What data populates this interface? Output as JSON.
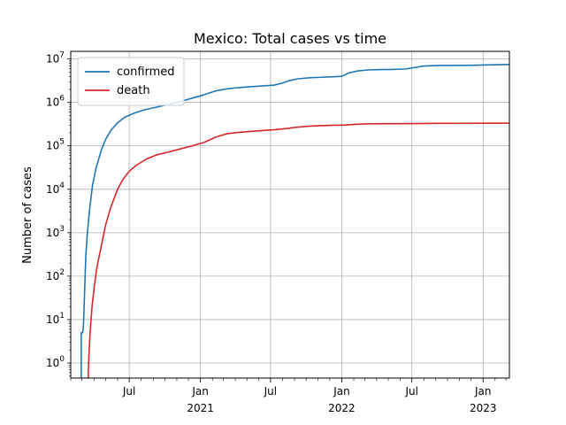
{
  "chart_data": {
    "type": "line",
    "title": "Mexico: Total cases vs time",
    "xlabel": "",
    "ylabel": "Number of cases",
    "yscale": "log",
    "ylim": [
      0.45,
      15000000
    ],
    "xlim": [
      "2020-02-01",
      "2023-03-10"
    ],
    "grid": true,
    "legend": "top-left",
    "x_ticks": [
      {
        "date": "2020-07-01",
        "label": "Jul",
        "sublabel": ""
      },
      {
        "date": "2021-01-01",
        "label": "Jan",
        "sublabel": "2021"
      },
      {
        "date": "2021-07-01",
        "label": "Jul",
        "sublabel": ""
      },
      {
        "date": "2022-01-01",
        "label": "Jan",
        "sublabel": "2022"
      },
      {
        "date": "2022-07-01",
        "label": "Jul",
        "sublabel": ""
      },
      {
        "date": "2023-01-01",
        "label": "Jan",
        "sublabel": "2023"
      }
    ],
    "y_ticks": [
      {
        "value": 1,
        "exp": "0"
      },
      {
        "value": 10,
        "exp": "1"
      },
      {
        "value": 100,
        "exp": "2"
      },
      {
        "value": 1000,
        "exp": "3"
      },
      {
        "value": 10000,
        "exp": "4"
      },
      {
        "value": 100000,
        "exp": "5"
      },
      {
        "value": 1000000,
        "exp": "6"
      },
      {
        "value": 10000000,
        "exp": "7"
      }
    ],
    "series": [
      {
        "name": "confirmed",
        "color": "#1f77b4",
        "points": [
          [
            "2020-02-28",
            0.3
          ],
          [
            "2020-02-28",
            5
          ],
          [
            "2020-03-03",
            5
          ],
          [
            "2020-03-05",
            8
          ],
          [
            "2020-03-08",
            50
          ],
          [
            "2020-03-11",
            300
          ],
          [
            "2020-03-15",
            1000
          ],
          [
            "2020-03-20",
            3000
          ],
          [
            "2020-03-28",
            12000
          ],
          [
            "2020-04-06",
            30000
          ],
          [
            "2020-04-20",
            80000
          ],
          [
            "2020-05-01",
            140000
          ],
          [
            "2020-05-15",
            230000
          ],
          [
            "2020-06-01",
            340000
          ],
          [
            "2020-06-20",
            460000
          ],
          [
            "2020-07-15",
            570000
          ],
          [
            "2020-08-10",
            680000
          ],
          [
            "2020-09-10",
            780000
          ],
          [
            "2020-10-10",
            900000
          ],
          [
            "2020-11-10",
            1050000
          ],
          [
            "2020-12-10",
            1250000
          ],
          [
            "2021-01-10",
            1500000
          ],
          [
            "2021-02-10",
            1850000
          ],
          [
            "2021-03-10",
            2050000
          ],
          [
            "2021-04-10",
            2200000
          ],
          [
            "2021-05-10",
            2300000
          ],
          [
            "2021-06-10",
            2400000
          ],
          [
            "2021-07-10",
            2500000
          ],
          [
            "2021-08-01",
            2800000
          ],
          [
            "2021-08-20",
            3200000
          ],
          [
            "2021-09-10",
            3500000
          ],
          [
            "2021-10-10",
            3700000
          ],
          [
            "2021-11-10",
            3800000
          ],
          [
            "2021-12-10",
            3900000
          ],
          [
            "2022-01-01",
            4000000
          ],
          [
            "2022-01-20",
            4800000
          ],
          [
            "2022-02-10",
            5300000
          ],
          [
            "2022-03-10",
            5600000
          ],
          [
            "2022-04-10",
            5700000
          ],
          [
            "2022-05-10",
            5750000
          ],
          [
            "2022-06-15",
            5900000
          ],
          [
            "2022-07-10",
            6400000
          ],
          [
            "2022-08-01",
            6900000
          ],
          [
            "2022-09-10",
            7100000
          ],
          [
            "2022-10-10",
            7100000
          ],
          [
            "2022-11-10",
            7150000
          ],
          [
            "2022-12-10",
            7200000
          ],
          [
            "2023-01-10",
            7300000
          ],
          [
            "2023-02-10",
            7400000
          ],
          [
            "2023-03-10",
            7480000
          ]
        ]
      },
      {
        "name": "death",
        "color": "#d62728",
        "points": [
          [
            "2020-03-17",
            0.3
          ],
          [
            "2020-03-18",
            1
          ],
          [
            "2020-03-22",
            5
          ],
          [
            "2020-03-27",
            20
          ],
          [
            "2020-04-01",
            50
          ],
          [
            "2020-04-08",
            150
          ],
          [
            "2020-04-20",
            500
          ],
          [
            "2020-05-01",
            1500
          ],
          [
            "2020-05-15",
            4000
          ],
          [
            "2020-06-01",
            10000
          ],
          [
            "2020-06-15",
            17000
          ],
          [
            "2020-07-01",
            26000
          ],
          [
            "2020-07-20",
            36000
          ],
          [
            "2020-08-15",
            50000
          ],
          [
            "2020-09-10",
            62000
          ],
          [
            "2020-10-10",
            72000
          ],
          [
            "2020-11-10",
            85000
          ],
          [
            "2020-12-10",
            100000
          ],
          [
            "2021-01-10",
            120000
          ],
          [
            "2021-02-10",
            160000
          ],
          [
            "2021-03-10",
            190000
          ],
          [
            "2021-04-10",
            205000
          ],
          [
            "2021-05-10",
            215000
          ],
          [
            "2021-06-10",
            225000
          ],
          [
            "2021-07-10",
            235000
          ],
          [
            "2021-08-10",
            250000
          ],
          [
            "2021-09-10",
            270000
          ],
          [
            "2021-10-10",
            285000
          ],
          [
            "2021-11-10",
            292000
          ],
          [
            "2021-12-10",
            298000
          ],
          [
            "2022-01-10",
            302000
          ],
          [
            "2022-02-10",
            315000
          ],
          [
            "2022-03-10",
            322000
          ],
          [
            "2022-05-10",
            324000
          ],
          [
            "2022-07-10",
            326000
          ],
          [
            "2022-09-10",
            330000
          ],
          [
            "2022-11-10",
            331000
          ],
          [
            "2023-01-10",
            332000
          ],
          [
            "2023-03-10",
            333000
          ]
        ]
      }
    ]
  }
}
